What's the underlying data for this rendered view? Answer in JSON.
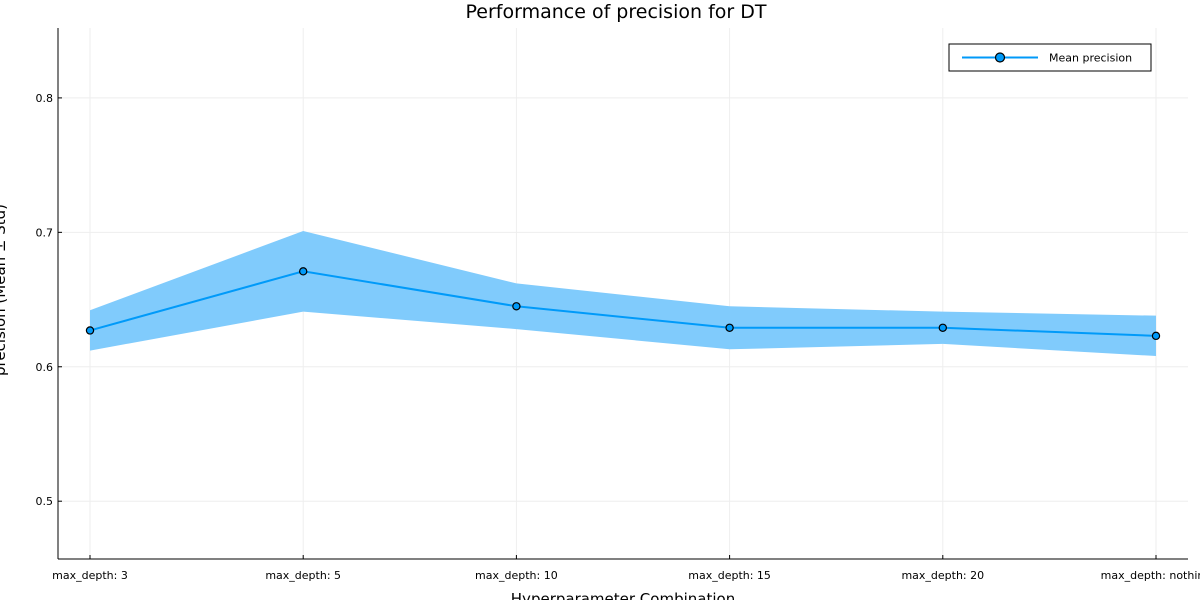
{
  "chart_data": {
    "type": "line",
    "title": "Performance of precision for DT",
    "xlabel": "Hyperparameter Combination",
    "ylabel": "precision (Mean ± Std)",
    "categories": [
      "max_depth: 3",
      "max_depth: 5",
      "max_depth: 10",
      "max_depth: 15",
      "max_depth: 20",
      "max_depth: nothing"
    ],
    "ylim": [
      0.457,
      0.852
    ],
    "yticks": [
      0.5,
      0.6,
      0.7,
      0.8
    ],
    "ytick_labels": [
      "0.5",
      "0.6",
      "0.7",
      "0.8"
    ],
    "grid": true,
    "legend_position": "top-right",
    "series": [
      {
        "name": "Mean precision",
        "values": [
          0.627,
          0.671,
          0.645,
          0.629,
          0.629,
          0.623
        ],
        "lower": [
          0.612,
          0.641,
          0.628,
          0.613,
          0.617,
          0.608
        ],
        "upper": [
          0.642,
          0.701,
          0.662,
          0.645,
          0.641,
          0.638
        ]
      }
    ],
    "colors": {
      "line": "#009af9",
      "band": "#80cbfc",
      "marker_edge": "#000000",
      "grid": "#eeeeee",
      "axis": "#000000"
    }
  }
}
